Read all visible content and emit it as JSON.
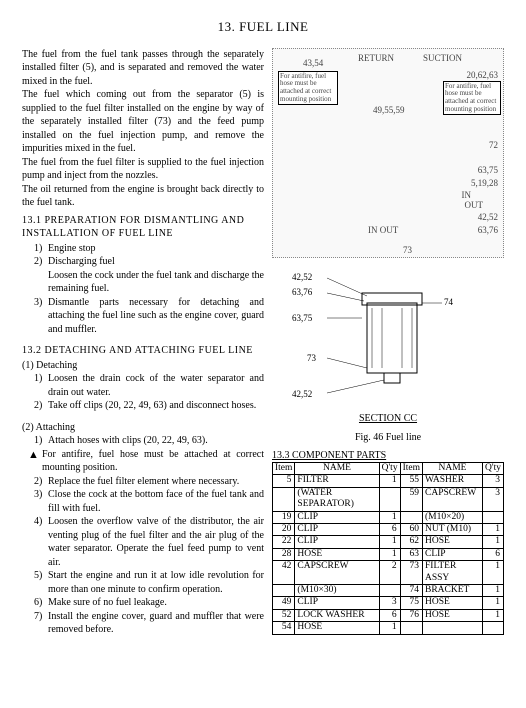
{
  "title": "13.  FUEL LINE",
  "intro": {
    "p1": "The fuel from the fuel tank passes through the separately installed filter (5), and is separated and removed the water mixed in the fuel.",
    "p2": "The fuel which coming out from the separator (5) is supplied to the fuel filter installed on the engine by way of the separately installed filter (73) and the feed pump installed on the fuel injection pump, and remove the impurities mixed in the fuel.",
    "p3": "The fuel from the fuel filter is supplied to the fuel injection pump and inject from the nozzles.",
    "p4": "The oil returned from the engine is brought back directly to the fuel tank."
  },
  "sec131": {
    "heading": "13.1 PREPARATION FOR DISMANTLING AND INSTALLATION OF FUEL LINE",
    "i1n": "1)",
    "i1": "Engine stop",
    "i2n": "2)",
    "i2": "Discharging fuel",
    "i2b": "Loosen the cock under the fuel tank and discharge the remaining fuel.",
    "i3n": "3)",
    "i3": "Dismantle parts necessary for detaching and attaching the fuel line such as the engine cover, guard and muffler."
  },
  "sec132": {
    "heading": "13.2 DETACHING AND ATTACHING FUEL LINE",
    "detH": "(1) Detaching",
    "d1n": "1)",
    "d1": "Loosen the drain cock of the water separator and drain out water.",
    "d2n": "2)",
    "d2": "Take off clips (20, 22, 49, 63) and disconnect hoses.",
    "attH": "(2) Attaching",
    "a1n": "1)",
    "a1": "Attach hoses with clips (20, 22, 49, 63).",
    "a1warn": "For antifire, fuel hose must be attached at correct mounting position.",
    "a2n": "2)",
    "a2": "Replace the fuel filter element where necessary.",
    "a3n": "3)",
    "a3": "Close the cock at the bottom face of the fuel tank and fill with fuel.",
    "a4n": "4)",
    "a4": "Loosen the overflow valve of the distributor, the air venting plug of the fuel filter and the air plug of the water separator. Operate the fuel feed pump to vent air.",
    "a5n": "5)",
    "a5": "Start the engine and run it at low idle revolution for more than one minute to confirm operation.",
    "a6n": "6)",
    "a6": "Make sure of no fuel leakage.",
    "a7n": "7)",
    "a7": "Install the engine cover, guard and muffler that were removed before."
  },
  "diagram1": {
    "l_4354": "43,54",
    "l_return": "RETURN",
    "l_suction": "SUCTION",
    "box1": "For antifire, fuel hose must be attached at correct mounting position",
    "l_495559": "49,55,59",
    "l_206263": "20,62,63",
    "box2": "For antifire, fuel hose must be attached at correct mounting position",
    "l_72": "72",
    "l_6375": "63,75",
    "l_51928": "5,19,28",
    "l_in": "IN",
    "l_out": "OUT",
    "l_4252": "42,52",
    "l_6376": "63,76",
    "l_inout": "IN OUT",
    "l_73": "73"
  },
  "diagram2": {
    "l_4252a": "42,52",
    "l_6376a": "63,76",
    "l_6375": "63,75",
    "l_74": "74",
    "l_73": "73",
    "l_4252b": "42,52",
    "section": "SECTION CC"
  },
  "figCaption": "Fig. 46   Fuel line",
  "sec133": "13.3  COMPONENT PARTS",
  "table": {
    "headers": [
      "Item",
      "NAME",
      "Q'ty",
      "Item",
      "NAME",
      "Q'ty"
    ],
    "rows": [
      [
        "5",
        "FILTER",
        "1",
        "55",
        "WASHER",
        "3"
      ],
      [
        "",
        "(WATER SEPARATOR)",
        "",
        "59",
        "CAPSCREW",
        "3"
      ],
      [
        "19",
        "CLIP",
        "1",
        "",
        "(M10×20)",
        ""
      ],
      [
        "20",
        "CLIP",
        "6",
        "60",
        "NUT (M10)",
        "1"
      ],
      [
        "22",
        "CLIP",
        "1",
        "62",
        "HOSE",
        "1"
      ],
      [
        "28",
        "HOSE",
        "1",
        "63",
        "CLIP",
        "6"
      ],
      [
        "42",
        "CAPSCREW",
        "2",
        "73",
        "FILTER ASSY",
        "1"
      ],
      [
        "",
        "(M10×30)",
        "",
        "74",
        "BRACKET",
        "1"
      ],
      [
        "49",
        "CLIP",
        "3",
        "75",
        "HOSE",
        "1"
      ],
      [
        "52",
        "LOCK WASHER",
        "6",
        "76",
        "HOSE",
        "1"
      ],
      [
        "54",
        "HOSE",
        "1",
        "",
        "",
        ""
      ]
    ]
  }
}
